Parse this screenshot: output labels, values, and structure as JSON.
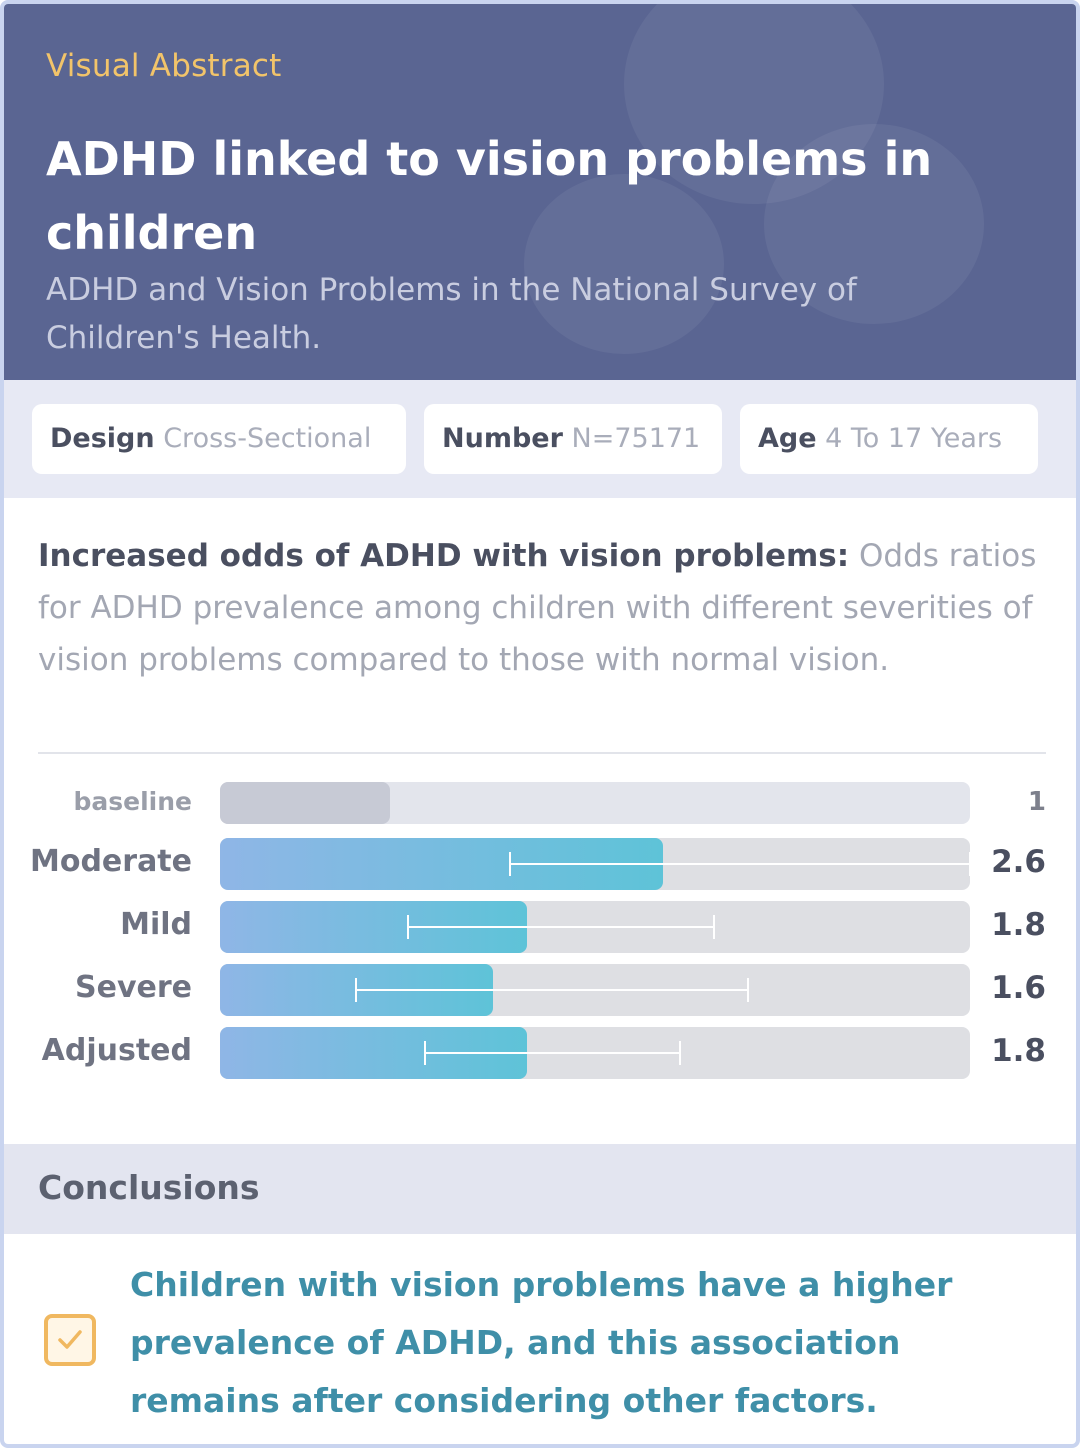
{
  "header": {
    "kicker": "Visual Abstract",
    "title": "ADHD linked to vision problems in children",
    "subtitle": "ADHD and Vision Problems in the National Survey of Children's Health."
  },
  "chips": [
    {
      "key": "Design",
      "value": "Cross-Sectional"
    },
    {
      "key": "Number",
      "value": "N=75171"
    },
    {
      "key": "Age",
      "value": "4 To 17 Years"
    }
  ],
  "result": {
    "lead": "Increased odds of ADHD with vision problems:",
    "body": "Odds ratios for ADHD prevalence among children with different severities of vision problems compared to those with normal vision."
  },
  "chart_data": {
    "type": "bar",
    "orientation": "horizontal",
    "categories": [
      "baseline",
      "Moderate",
      "Mild",
      "Severe",
      "Adjusted"
    ],
    "values": [
      1,
      2.6,
      1.8,
      1.6,
      1.8
    ],
    "value_labels": [
      "1",
      "2.6",
      "1.8",
      "1.6",
      "1.8"
    ],
    "error_low": [
      null,
      1.7,
      1.1,
      0.8,
      1.2
    ],
    "error_high": [
      null,
      4.4,
      2.9,
      3.1,
      2.7
    ],
    "xlim": [
      0,
      4.4
    ],
    "colors": {
      "baseline": "#c7cad5",
      "bar_start": "#8fb6e6",
      "bar_end": "#5ec3d8",
      "track": "#dedfe3"
    }
  },
  "conclusions": {
    "heading": "Conclusions",
    "text": "Children with vision problems have a higher prevalence of ADHD, and this association remains after considering other factors.",
    "icon": "check-icon",
    "accent": "#f0b860",
    "text_color": "#3f8fa8"
  }
}
